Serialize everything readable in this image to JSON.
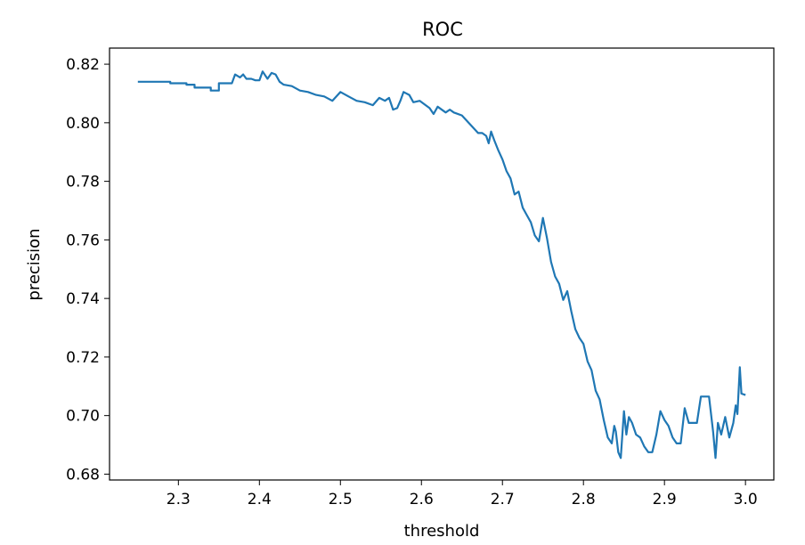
{
  "chart_data": {
    "type": "line",
    "title": "ROC",
    "xlabel": "threshold",
    "ylabel": "precision",
    "xlim": [
      2.215,
      3.035
    ],
    "ylim": [
      0.678,
      0.8255
    ],
    "xticks": [
      2.3,
      2.4,
      2.5,
      2.6,
      2.7,
      2.8,
      2.9,
      3.0
    ],
    "xtick_labels": [
      "2.3",
      "2.4",
      "2.5",
      "2.6",
      "2.7",
      "2.8",
      "2.9",
      "3.0"
    ],
    "yticks": [
      0.68,
      0.7,
      0.72,
      0.74,
      0.76,
      0.78,
      0.8,
      0.82
    ],
    "ytick_labels": [
      "0.68",
      "0.70",
      "0.72",
      "0.74",
      "0.76",
      "0.78",
      "0.80",
      "0.82"
    ],
    "grid": false,
    "line_color": "#1f77b4",
    "series": [
      {
        "x": [
          2.25,
          2.29,
          2.29,
          2.31,
          2.31,
          2.32,
          2.32,
          2.34,
          2.34,
          2.35,
          2.35,
          2.36,
          2.366,
          2.37,
          2.376,
          2.38,
          2.384,
          2.39,
          2.395,
          2.4,
          2.404,
          2.41,
          2.415,
          2.42,
          2.425,
          2.43,
          2.44,
          2.45,
          2.46,
          2.47,
          2.48,
          2.49,
          2.5,
          2.51,
          2.52,
          2.53,
          2.54,
          2.548,
          2.555,
          2.56,
          2.565,
          2.57,
          2.574,
          2.578,
          2.585,
          2.59,
          2.598,
          2.61,
          2.615,
          2.62,
          2.63,
          2.635,
          2.64,
          2.65,
          2.66,
          2.67,
          2.675,
          2.68,
          2.683,
          2.686,
          2.69,
          2.695,
          2.7,
          2.705,
          2.71,
          2.715,
          2.72,
          2.725,
          2.73,
          2.735,
          2.74,
          2.745,
          2.75,
          2.755,
          2.76,
          2.765,
          2.77,
          2.775,
          2.78,
          2.785,
          2.79,
          2.795,
          2.8,
          2.805,
          2.81,
          2.815,
          2.82,
          2.825,
          2.83,
          2.835,
          2.838,
          2.84,
          2.843,
          2.846,
          2.85,
          2.853,
          2.856,
          2.86,
          2.865,
          2.87,
          2.875,
          2.88,
          2.885,
          2.89,
          2.895,
          2.9,
          2.905,
          2.91,
          2.915,
          2.92,
          2.925,
          2.93,
          2.935,
          2.94,
          2.945,
          2.95,
          2.955,
          2.96,
          2.963,
          2.966,
          2.97,
          2.975,
          2.98,
          2.985,
          2.988,
          2.99,
          2.993,
          2.995,
          3.0
        ],
        "y": [
          0.814,
          0.814,
          0.8135,
          0.8135,
          0.813,
          0.813,
          0.812,
          0.812,
          0.811,
          0.811,
          0.8135,
          0.8135,
          0.8135,
          0.8165,
          0.8155,
          0.8165,
          0.815,
          0.815,
          0.8145,
          0.8145,
          0.8175,
          0.815,
          0.817,
          0.8165,
          0.814,
          0.813,
          0.8125,
          0.811,
          0.8105,
          0.8095,
          0.809,
          0.8075,
          0.8105,
          0.809,
          0.8075,
          0.807,
          0.806,
          0.8085,
          0.8075,
          0.8085,
          0.8045,
          0.805,
          0.8075,
          0.8105,
          0.8095,
          0.807,
          0.8075,
          0.805,
          0.803,
          0.8055,
          0.8035,
          0.8045,
          0.8035,
          0.8025,
          0.7995,
          0.7965,
          0.7965,
          0.7955,
          0.793,
          0.797,
          0.794,
          0.7905,
          0.7875,
          0.7835,
          0.781,
          0.7755,
          0.7765,
          0.771,
          0.7685,
          0.766,
          0.7615,
          0.7595,
          0.7675,
          0.7605,
          0.7525,
          0.7475,
          0.745,
          0.7395,
          0.7425,
          0.7355,
          0.7295,
          0.7265,
          0.7245,
          0.7185,
          0.7155,
          0.7085,
          0.7055,
          0.6985,
          0.6925,
          0.6905,
          0.6965,
          0.6945,
          0.6875,
          0.6855,
          0.7015,
          0.6935,
          0.6995,
          0.6975,
          0.6935,
          0.6925,
          0.6895,
          0.6875,
          0.6875,
          0.6935,
          0.7015,
          0.6985,
          0.6965,
          0.6925,
          0.6905,
          0.6905,
          0.7025,
          0.6975,
          0.6975,
          0.6975,
          0.7065,
          0.7065,
          0.7065,
          0.6945,
          0.6855,
          0.6975,
          0.6935,
          0.6995,
          0.6925,
          0.6975,
          0.7035,
          0.7005,
          0.7165,
          0.7075,
          0.707
        ]
      }
    ]
  }
}
